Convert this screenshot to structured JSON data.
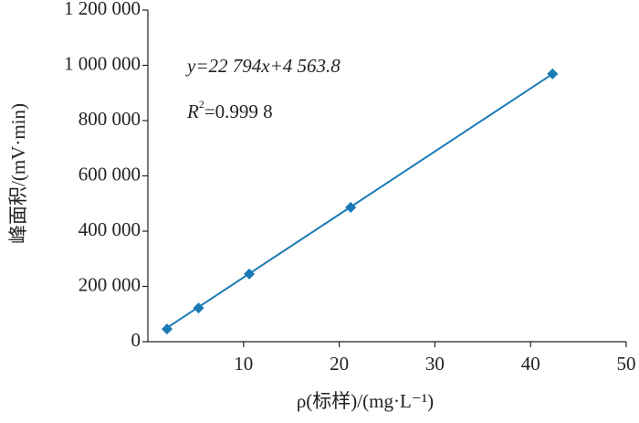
{
  "chart_data": {
    "type": "scatter",
    "x_label": "ρ(标样)/(mg·L⁻¹)",
    "y_label": "峰面积/(mV·min)",
    "x": [
      2.0,
      5.3,
      10.6,
      21.2,
      42.3
    ],
    "values": [
      46000,
      122000,
      245000,
      486000,
      969000
    ],
    "color": "#1a7ab5",
    "fit": {
      "slope": 22794,
      "intercept": 4563.8
    },
    "equation": "y=22 794x+4 563.8",
    "r_squared": {
      "symbol": "R",
      "sup": "2",
      "text": "=0.999 8"
    },
    "xlim": [
      0,
      50
    ],
    "xticks": [
      10,
      20,
      30,
      40,
      50
    ],
    "ylim": [
      0,
      1200000
    ],
    "yticks": [
      0,
      {
        "value": 200000,
        "label": "200 000"
      },
      {
        "value": 400000,
        "label": "400 000"
      },
      {
        "value": 600000,
        "label": "600 000"
      },
      {
        "value": 800000,
        "label": "800 000"
      },
      {
        "value": 1000000,
        "label": "1 000 000"
      },
      {
        "value": 1200000,
        "label": "1 200 000"
      }
    ]
  }
}
